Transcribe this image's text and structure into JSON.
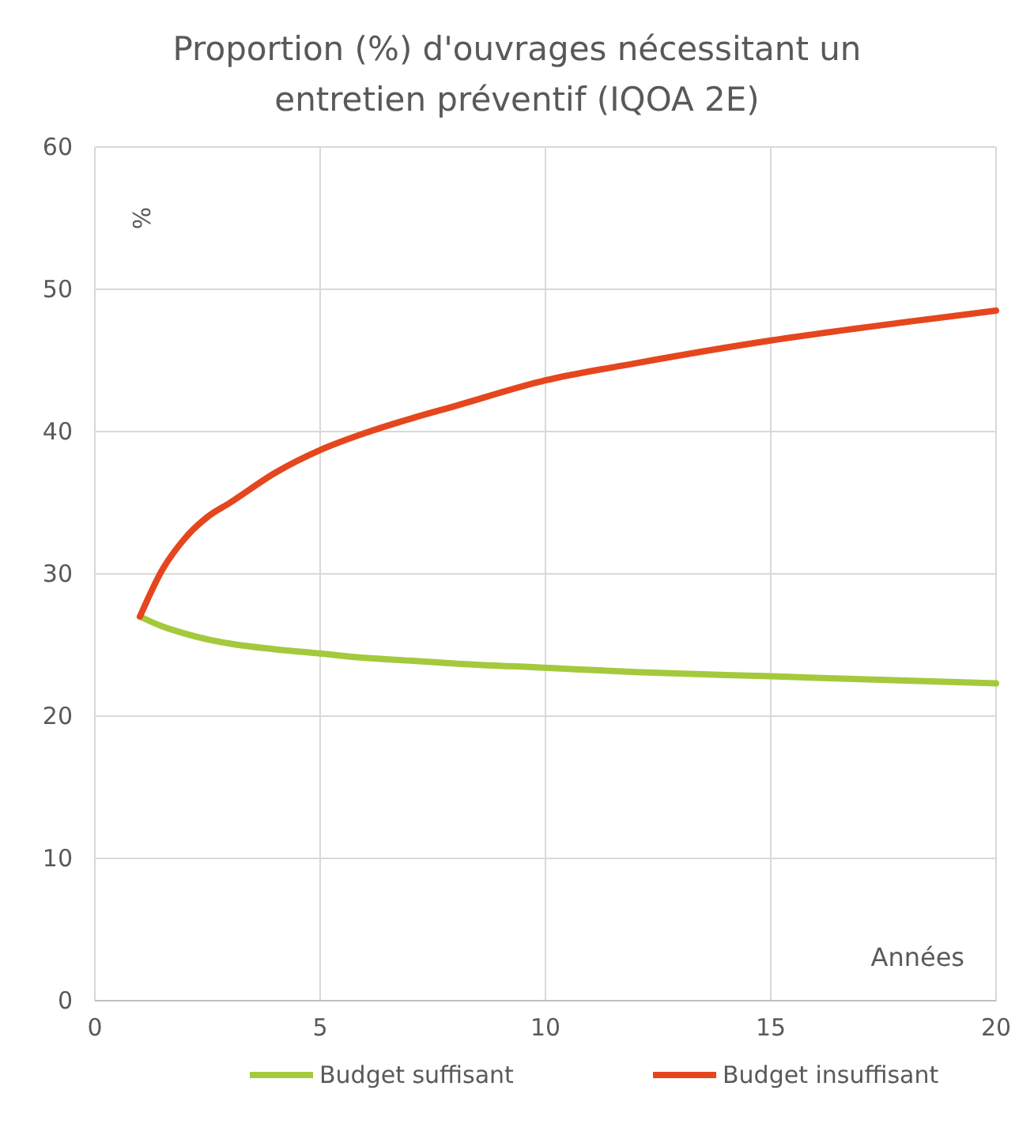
{
  "chart_data": {
    "type": "line",
    "title": "Proportion (%) d'ouvrages nécessitant un entretien préventif (IQOA 2E)",
    "xlabel": "Années",
    "ylabel": "%",
    "x": [
      1,
      1.5,
      2,
      2.5,
      3,
      4,
      5,
      6,
      7,
      8,
      10,
      12,
      15,
      18,
      20
    ],
    "series": [
      {
        "name": "Budget suffisant",
        "color": "#a5c93d",
        "values": [
          27,
          26.3,
          25.8,
          25.4,
          25.1,
          24.7,
          24.4,
          24.1,
          23.9,
          23.7,
          23.4,
          23.1,
          22.8,
          22.5,
          22.3
        ]
      },
      {
        "name": "Budget insuffisant",
        "color": "#e5461e",
        "values": [
          27,
          30.3,
          32.5,
          34,
          35,
          37.1,
          38.7,
          39.9,
          40.9,
          41.8,
          43.6,
          44.8,
          46.4,
          47.7,
          48.5
        ]
      }
    ],
    "xlim": [
      0,
      20
    ],
    "xticks": [
      0,
      5,
      10,
      15,
      20
    ],
    "ylim": [
      0,
      60
    ],
    "yticks": [
      0,
      10,
      20,
      30,
      40,
      50,
      60
    ],
    "grid": true,
    "legend": "bottom",
    "marker": "none",
    "line_style": "solid"
  }
}
